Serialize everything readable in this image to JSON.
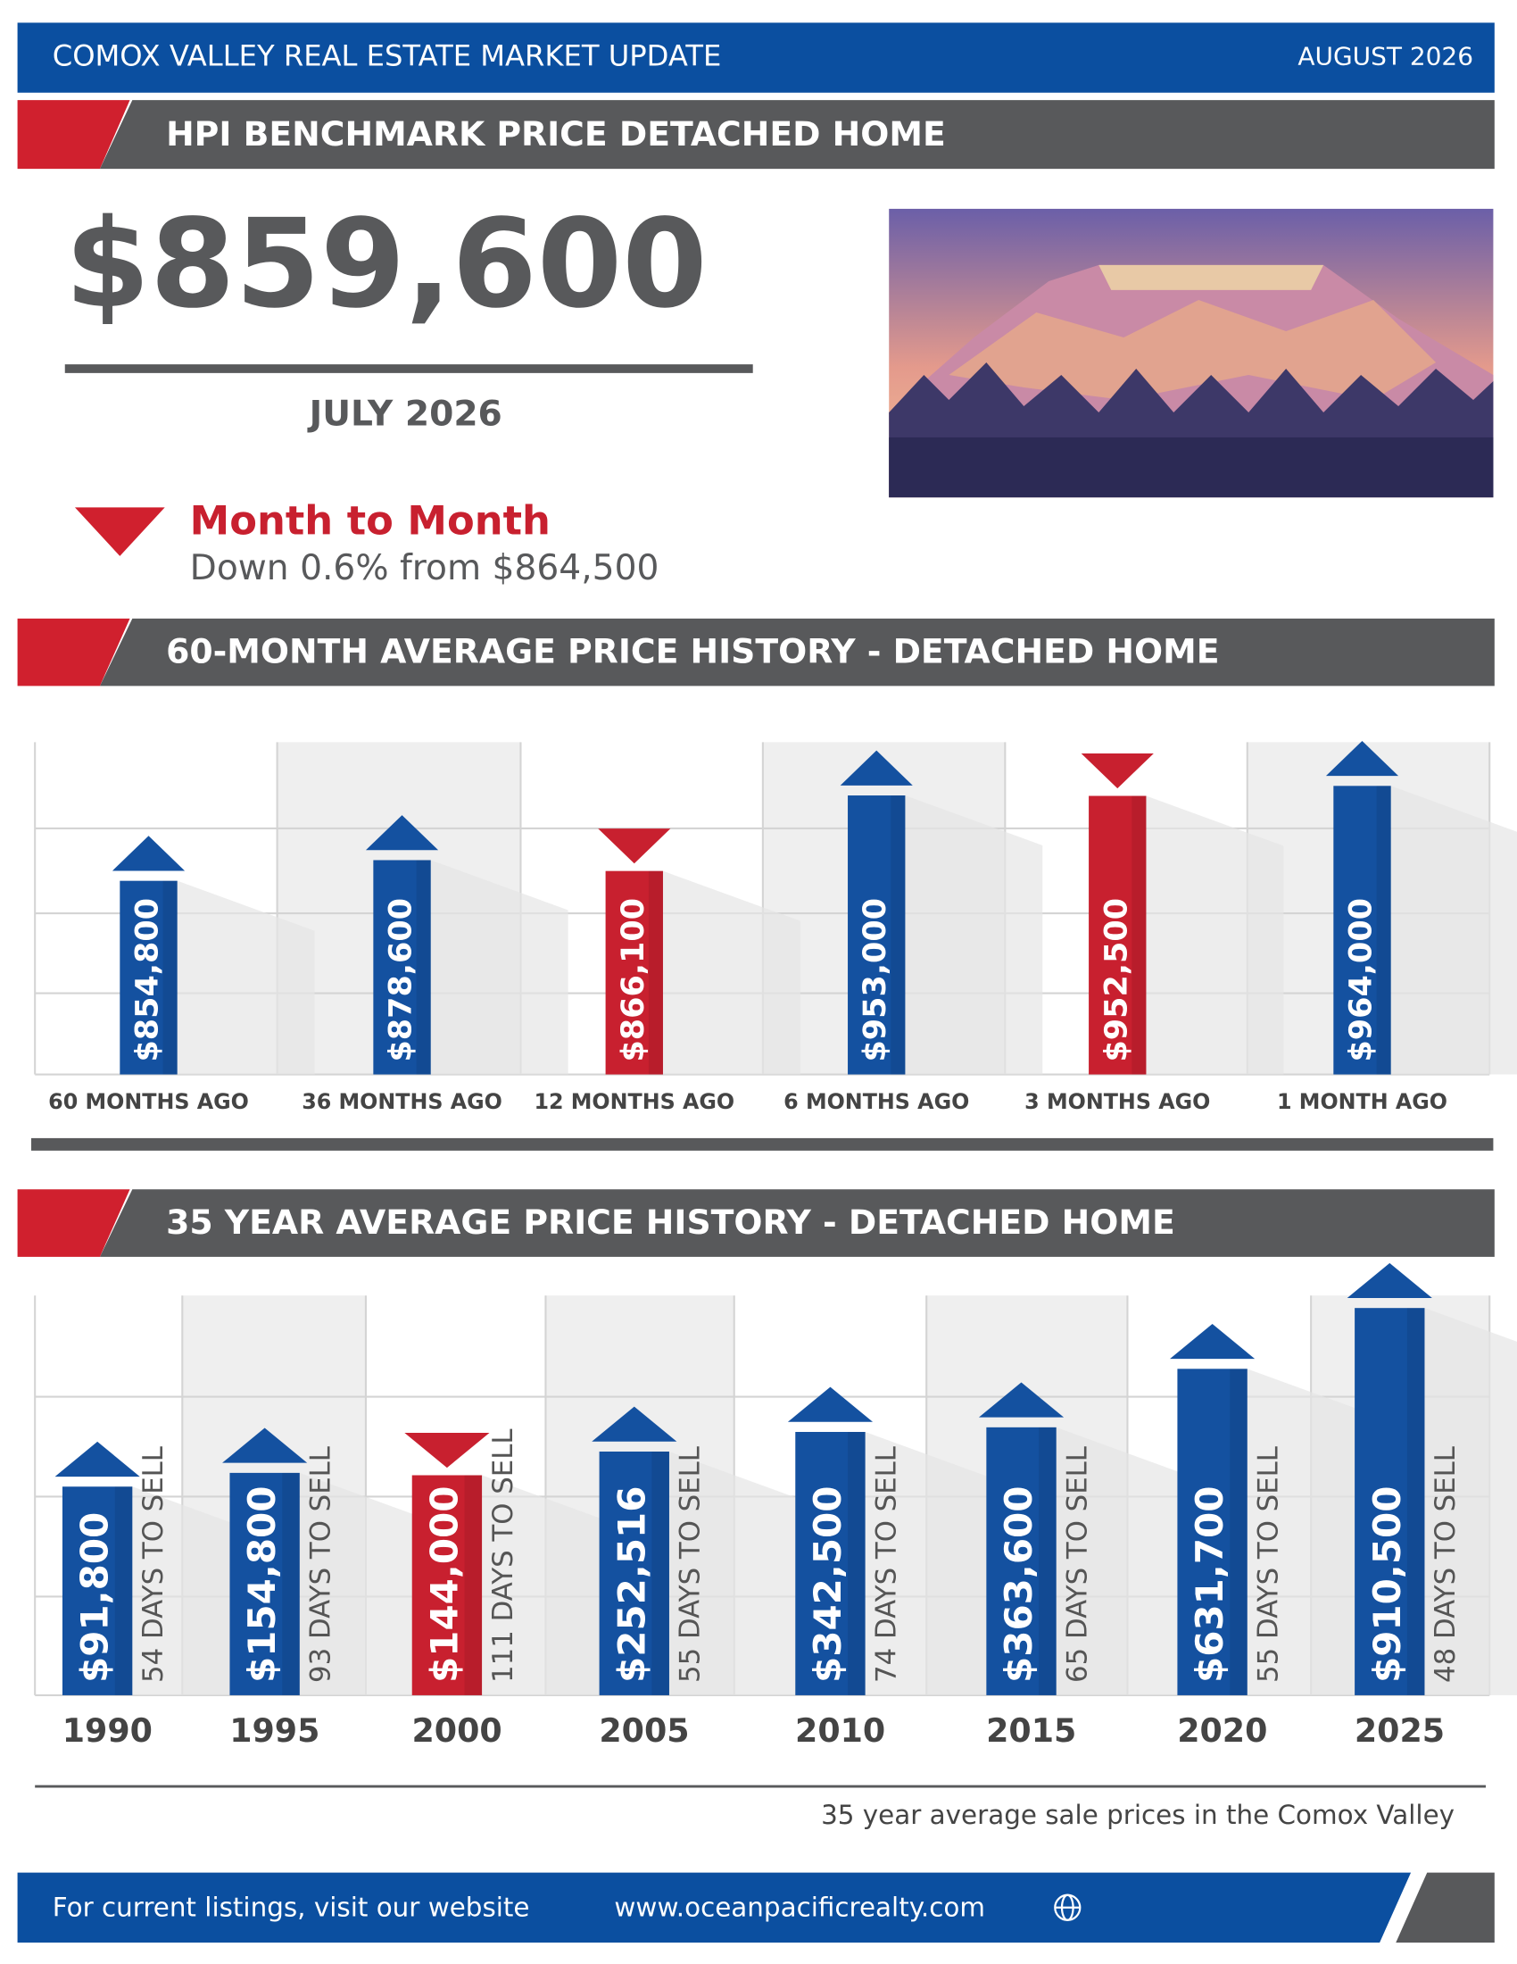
{
  "header": {
    "title": "COMOX VALLEY REAL ESTATE MARKET UPDATE",
    "date": "AUGUST 2026"
  },
  "hpi": {
    "heading": "HPI BENCHMARK PRICE DETACHED HOME",
    "price": "$859,600",
    "period": "JULY 2026",
    "change_title": "Month to Month",
    "change_text": "Down 0.6% from $864,500"
  },
  "chart_data": [
    {
      "type": "bar",
      "title": "60-MONTH AVERAGE PRICE HISTORY - DETACHED HOME",
      "categories": [
        "60 MONTHS AGO",
        "36 MONTHS AGO",
        "12 MONTHS AGO",
        "6 MONTHS AGO",
        "3 MONTHS AGO",
        "1 MONTH AGO"
      ],
      "values": [
        854800,
        878600,
        866100,
        953000,
        952500,
        964000
      ],
      "value_labels": [
        "$854,800",
        "$878,600",
        "$866,100",
        "$953,000",
        "$952,500",
        "$964,000"
      ],
      "trends": [
        "up",
        "up",
        "down",
        "up",
        "down",
        "up"
      ],
      "colors": {
        "up": "#1451a0",
        "down": "#c8202f"
      },
      "grid": true
    },
    {
      "type": "bar",
      "title": "35 YEAR AVERAGE PRICE HISTORY - DETACHED HOME",
      "categories": [
        "1990",
        "1995",
        "2000",
        "2005",
        "2010",
        "2015",
        "2020",
        "2025"
      ],
      "values": [
        91800,
        154800,
        144000,
        252516,
        342500,
        363600,
        631700,
        910500
      ],
      "value_labels": [
        "$91,800",
        "$154,800",
        "$144,000",
        "$252,516",
        "$342,500",
        "$363,600",
        "$631,700",
        "$910,500"
      ],
      "annotations": [
        "54 DAYS TO SELL",
        "93 DAYS TO SELL",
        "111 DAYS TO SELL",
        "55 DAYS TO SELL",
        "74 DAYS TO SELL",
        "65 DAYS TO SELL",
        "55 DAYS TO SELL",
        "48 DAYS TO SELL"
      ],
      "trends": [
        "up",
        "up",
        "down",
        "up",
        "up",
        "up",
        "up",
        "up"
      ],
      "colors": {
        "up": "#1451a0",
        "down": "#c8202f"
      },
      "grid": true,
      "caption": "35 year average sale prices in the Comox Valley"
    }
  ],
  "footer": {
    "text": "For current listings, visit our website",
    "url": "www.oceanpacificrealty.com"
  }
}
